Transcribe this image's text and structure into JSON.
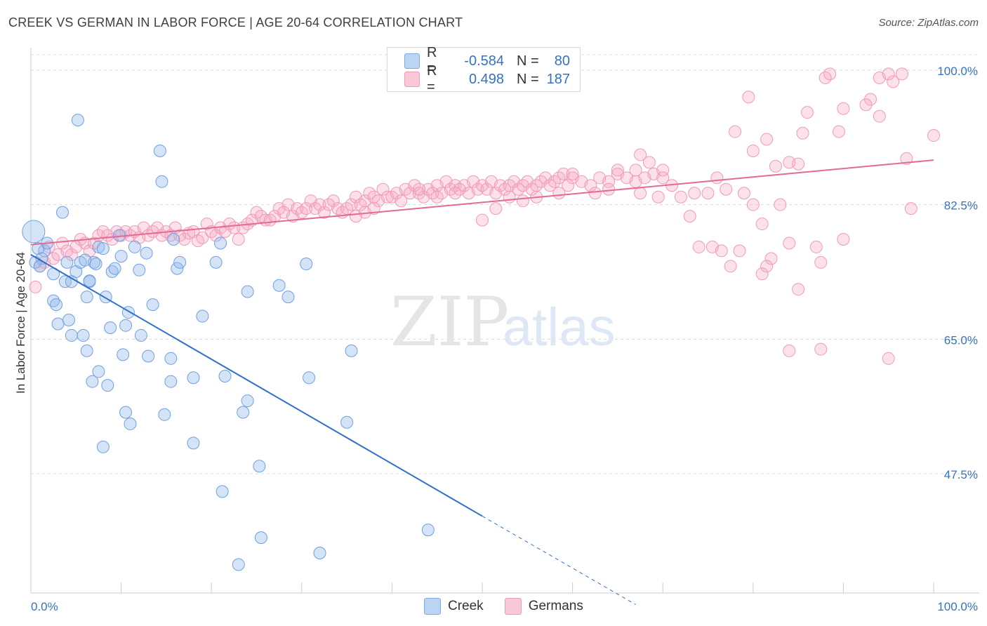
{
  "header": {
    "title": "CREEK VS GERMAN IN LABOR FORCE | AGE 20-64 CORRELATION CHART",
    "source": "Source: ZipAtlas.com"
  },
  "legend": {
    "rows": [
      {
        "r_label": "R =",
        "r_value": "-0.584",
        "n_label": "N =",
        "n_value": "80"
      },
      {
        "r_label": "R =",
        "r_value": "0.498",
        "n_label": "N =",
        "n_value": "187"
      }
    ]
  },
  "watermark": {
    "zip": "ZIP",
    "atlas": "atlas"
  },
  "chart_data": {
    "type": "scatter",
    "title": "CREEK VS GERMAN IN LABOR FORCE | AGE 20-64 CORRELATION CHART",
    "xlabel": "",
    "ylabel": "In Labor Force | Age 20-64",
    "xlim": [
      0,
      100
    ],
    "ylim": [
      32,
      102
    ],
    "x_tick_labels": [
      "0.0%",
      "100.0%"
    ],
    "y_ticks": [
      47.5,
      65.0,
      82.5,
      100.0
    ],
    "y_tick_labels": [
      "47.5%",
      "65.0%",
      "82.5%",
      "100.0%"
    ],
    "grid": true,
    "legend_position": "top-center",
    "colors": {
      "creek": "#6fa0e0",
      "creek_line": "#2f6fcc",
      "germans": "#f09ab8",
      "germans_line": "#e36a97",
      "tick_text": "#3572c6"
    },
    "series": [
      {
        "name": "Creek",
        "trend": {
          "x0": 0,
          "y0": 76.0,
          "x1": 50,
          "y1": 42.0,
          "dashed_to_x": 67,
          "dashed_to_y": 30.5
        },
        "points": [
          [
            0.3,
            79.0
          ],
          [
            1.5,
            76.5
          ],
          [
            0.8,
            76.8
          ],
          [
            1.2,
            75.5
          ],
          [
            0.5,
            75.0
          ],
          [
            1.8,
            77.5
          ],
          [
            1.0,
            74.5
          ],
          [
            2.5,
            73.5
          ],
          [
            3.5,
            81.5
          ],
          [
            5.2,
            93.5
          ],
          [
            14.3,
            89.5
          ],
          [
            14.5,
            85.5
          ],
          [
            3.8,
            72.5
          ],
          [
            4.0,
            75.0
          ],
          [
            4.5,
            72.5
          ],
          [
            5.0,
            73.8
          ],
          [
            5.5,
            75.0
          ],
          [
            6.5,
            72.5
          ],
          [
            7.0,
            75.0
          ],
          [
            6.0,
            75.3
          ],
          [
            7.5,
            77.0
          ],
          [
            8.0,
            76.8
          ],
          [
            7.2,
            74.8
          ],
          [
            9.0,
            73.8
          ],
          [
            9.3,
            74.2
          ],
          [
            10.0,
            75.8
          ],
          [
            9.8,
            78.5
          ],
          [
            11.5,
            77.0
          ],
          [
            12.8,
            76.2
          ],
          [
            16.2,
            74.2
          ],
          [
            16.5,
            75.0
          ],
          [
            20.5,
            75.0
          ],
          [
            2.5,
            70.0
          ],
          [
            2.8,
            69.5
          ],
          [
            3.0,
            67.0
          ],
          [
            4.2,
            67.5
          ],
          [
            4.5,
            65.5
          ],
          [
            5.8,
            65.5
          ],
          [
            6.2,
            63.5
          ],
          [
            6.2,
            70.5
          ],
          [
            8.3,
            70.5
          ],
          [
            8.8,
            66.5
          ],
          [
            10.5,
            66.8
          ],
          [
            10.8,
            68.5
          ],
          [
            12.2,
            65.5
          ],
          [
            13.5,
            69.5
          ],
          [
            10.2,
            63.0
          ],
          [
            13.0,
            62.8
          ],
          [
            15.5,
            62.5
          ],
          [
            7.5,
            60.8
          ],
          [
            6.8,
            59.5
          ],
          [
            8.5,
            59.0
          ],
          [
            15.5,
            59.5
          ],
          [
            18.0,
            60.0
          ],
          [
            19.0,
            68.0
          ],
          [
            21.5,
            60.2
          ],
          [
            27.5,
            72.0
          ],
          [
            28.5,
            70.5
          ],
          [
            24.0,
            71.2
          ],
          [
            30.5,
            74.8
          ],
          [
            10.5,
            55.5
          ],
          [
            11.0,
            54.0
          ],
          [
            14.8,
            55.2
          ],
          [
            23.5,
            55.5
          ],
          [
            24.0,
            57.0
          ],
          [
            35.0,
            54.2
          ],
          [
            35.5,
            63.5
          ],
          [
            30.8,
            60.0
          ],
          [
            18.0,
            51.5
          ],
          [
            8.0,
            51.0
          ],
          [
            25.3,
            48.5
          ],
          [
            21.2,
            45.2
          ],
          [
            25.5,
            39.2
          ],
          [
            32.0,
            37.2
          ],
          [
            23.0,
            35.7
          ],
          [
            44.0,
            40.2
          ],
          [
            21.0,
            77.5
          ],
          [
            15.8,
            78.0
          ],
          [
            12.0,
            74.0
          ],
          [
            6.5,
            72.6
          ]
        ]
      },
      {
        "name": "Germans",
        "trend": {
          "x0": 0,
          "y0": 77.3,
          "x1": 100,
          "y1": 88.3
        },
        "points": [
          [
            0.5,
            71.8
          ],
          [
            1.0,
            74.5
          ],
          [
            1.5,
            75.0
          ],
          [
            2.0,
            77.0
          ],
          [
            2.5,
            75.5
          ],
          [
            3.0,
            76.0
          ],
          [
            3.5,
            77.5
          ],
          [
            4.0,
            76.5
          ],
          [
            4.5,
            76.0
          ],
          [
            5.0,
            77.0
          ],
          [
            5.5,
            78.0
          ],
          [
            6.0,
            77.5
          ],
          [
            6.5,
            76.5
          ],
          [
            7.0,
            77.5
          ],
          [
            7.5,
            78.5
          ],
          [
            8.0,
            79.0
          ],
          [
            8.5,
            78.5
          ],
          [
            9.0,
            78.0
          ],
          [
            9.5,
            79.0
          ],
          [
            10.0,
            78.5
          ],
          [
            10.5,
            79.0
          ],
          [
            11.0,
            78.5
          ],
          [
            11.5,
            79.0
          ],
          [
            12.0,
            78.2
          ],
          [
            12.5,
            79.5
          ],
          [
            13.0,
            78.5
          ],
          [
            13.5,
            79.0
          ],
          [
            14.0,
            79.5
          ],
          [
            14.5,
            78.5
          ],
          [
            15.0,
            79.0
          ],
          [
            15.5,
            78.5
          ],
          [
            16.0,
            79.5
          ],
          [
            16.5,
            78.5
          ],
          [
            17.0,
            78.0
          ],
          [
            17.5,
            78.8
          ],
          [
            18.0,
            79.0
          ],
          [
            18.5,
            77.8
          ],
          [
            19.0,
            78.2
          ],
          [
            19.5,
            80.0
          ],
          [
            20.0,
            79.0
          ],
          [
            20.5,
            78.5
          ],
          [
            21.0,
            79.5
          ],
          [
            21.5,
            79.0
          ],
          [
            22.0,
            80.0
          ],
          [
            22.5,
            79.5
          ],
          [
            23.0,
            78.0
          ],
          [
            23.5,
            79.5
          ],
          [
            24.0,
            80.0
          ],
          [
            24.5,
            80.5
          ],
          [
            25.0,
            81.5
          ],
          [
            25.5,
            81.0
          ],
          [
            26.0,
            80.5
          ],
          [
            26.5,
            80.5
          ],
          [
            27.0,
            81.0
          ],
          [
            27.5,
            82.0
          ],
          [
            28.0,
            81.5
          ],
          [
            28.5,
            82.5
          ],
          [
            29.0,
            81.0
          ],
          [
            29.5,
            82.0
          ],
          [
            30.0,
            81.5
          ],
          [
            30.5,
            82.0
          ],
          [
            31.0,
            83.0
          ],
          [
            31.5,
            82.0
          ],
          [
            32.0,
            82.5
          ],
          [
            32.5,
            81.5
          ],
          [
            33.0,
            82.5
          ],
          [
            33.5,
            83.0
          ],
          [
            34.0,
            82.0
          ],
          [
            34.5,
            81.5
          ],
          [
            35.0,
            82.0
          ],
          [
            35.5,
            82.5
          ],
          [
            36.0,
            83.5
          ],
          [
            36.5,
            82.5
          ],
          [
            37.0,
            83.0
          ],
          [
            37.5,
            84.0
          ],
          [
            38.0,
            83.5
          ],
          [
            38.5,
            83.0
          ],
          [
            39.0,
            84.5
          ],
          [
            39.5,
            83.5
          ],
          [
            40.0,
            83.5
          ],
          [
            40.5,
            84.0
          ],
          [
            41.0,
            83.0
          ],
          [
            41.5,
            84.5
          ],
          [
            42.0,
            84.0
          ],
          [
            42.5,
            85.0
          ],
          [
            43.0,
            84.0
          ],
          [
            43.5,
            83.5
          ],
          [
            44.0,
            84.5
          ],
          [
            44.5,
            84.0
          ],
          [
            45.0,
            85.0
          ],
          [
            45.5,
            84.0
          ],
          [
            46.0,
            85.5
          ],
          [
            46.5,
            84.5
          ],
          [
            47.0,
            85.0
          ],
          [
            47.5,
            84.5
          ],
          [
            48.0,
            85.0
          ],
          [
            48.5,
            84.0
          ],
          [
            49.0,
            85.5
          ],
          [
            49.5,
            84.5
          ],
          [
            50.0,
            85.0
          ],
          [
            50.5,
            84.5
          ],
          [
            51.0,
            85.5
          ],
          [
            51.5,
            84.0
          ],
          [
            52.0,
            85.0
          ],
          [
            52.5,
            84.5
          ],
          [
            53.0,
            85.0
          ],
          [
            53.5,
            85.5
          ],
          [
            54.0,
            84.5
          ],
          [
            54.5,
            85.0
          ],
          [
            55.0,
            85.5
          ],
          [
            55.5,
            84.5
          ],
          [
            56.0,
            85.0
          ],
          [
            56.5,
            85.5
          ],
          [
            57.0,
            86.0
          ],
          [
            57.5,
            85.0
          ],
          [
            58.0,
            85.5
          ],
          [
            58.5,
            86.0
          ],
          [
            59.0,
            86.5
          ],
          [
            59.5,
            85.0
          ],
          [
            60.0,
            86.0
          ],
          [
            61.0,
            85.5
          ],
          [
            62.0,
            85.0
          ],
          [
            63.0,
            86.0
          ],
          [
            64.0,
            85.5
          ],
          [
            65.0,
            86.5
          ],
          [
            66.0,
            86.0
          ],
          [
            67.0,
            85.5
          ],
          [
            68.0,
            86.0
          ],
          [
            69.0,
            86.5
          ],
          [
            70.0,
            86.0
          ],
          [
            62.5,
            84.0
          ],
          [
            64.0,
            84.5
          ],
          [
            67.5,
            84.0
          ],
          [
            69.5,
            83.5
          ],
          [
            72.0,
            83.5
          ],
          [
            75.0,
            84.0
          ],
          [
            77.0,
            84.5
          ],
          [
            79.0,
            84.0
          ],
          [
            65.0,
            87.0
          ],
          [
            67.0,
            87.0
          ],
          [
            71.0,
            85.0
          ],
          [
            73.5,
            84.0
          ],
          [
            60.0,
            86.5
          ],
          [
            58.5,
            84.0
          ],
          [
            56.0,
            83.5
          ],
          [
            54.5,
            83.0
          ],
          [
            53.0,
            83.5
          ],
          [
            51.5,
            82.0
          ],
          [
            50.0,
            80.5
          ],
          [
            38.0,
            82.0
          ],
          [
            47.0,
            84.0
          ],
          [
            45.0,
            83.5
          ],
          [
            43.0,
            84.5
          ],
          [
            37.0,
            81.5
          ],
          [
            36.0,
            81.0
          ],
          [
            67.5,
            89.0
          ],
          [
            68.5,
            88.0
          ],
          [
            70.0,
            87.0
          ],
          [
            76.0,
            86.0
          ],
          [
            73.0,
            81.0
          ],
          [
            80.0,
            82.5
          ],
          [
            83.0,
            82.5
          ],
          [
            81.0,
            80.0
          ],
          [
            74.0,
            77.0
          ],
          [
            75.5,
            77.0
          ],
          [
            76.5,
            76.5
          ],
          [
            78.5,
            76.5
          ],
          [
            84.0,
            77.5
          ],
          [
            82.0,
            75.5
          ],
          [
            77.5,
            74.5
          ],
          [
            81.5,
            74.5
          ],
          [
            81.0,
            73.5
          ],
          [
            87.0,
            77.0
          ],
          [
            85.0,
            71.5
          ],
          [
            87.5,
            75.0
          ],
          [
            90.0,
            78.0
          ],
          [
            84.0,
            88.0
          ],
          [
            81.5,
            91.0
          ],
          [
            80.0,
            89.5
          ],
          [
            78.0,
            92.0
          ],
          [
            82.5,
            87.5
          ],
          [
            85.0,
            87.8
          ],
          [
            89.5,
            92.0
          ],
          [
            85.5,
            91.8
          ],
          [
            86.0,
            94.5
          ],
          [
            90.0,
            95.0
          ],
          [
            93.0,
            96.2
          ],
          [
            92.5,
            95.5
          ],
          [
            94.0,
            94.0
          ],
          [
            97.0,
            88.5
          ],
          [
            100.0,
            91.5
          ],
          [
            97.5,
            82.0
          ],
          [
            88.0,
            99.0
          ],
          [
            88.5,
            99.5
          ],
          [
            94.0,
            99.0
          ],
          [
            95.5,
            98.5
          ],
          [
            96.5,
            99.5
          ],
          [
            95.0,
            99.5
          ],
          [
            79.5,
            96.5
          ],
          [
            84.0,
            63.5
          ],
          [
            87.5,
            63.7
          ],
          [
            95.0,
            62.5
          ]
        ]
      }
    ]
  }
}
